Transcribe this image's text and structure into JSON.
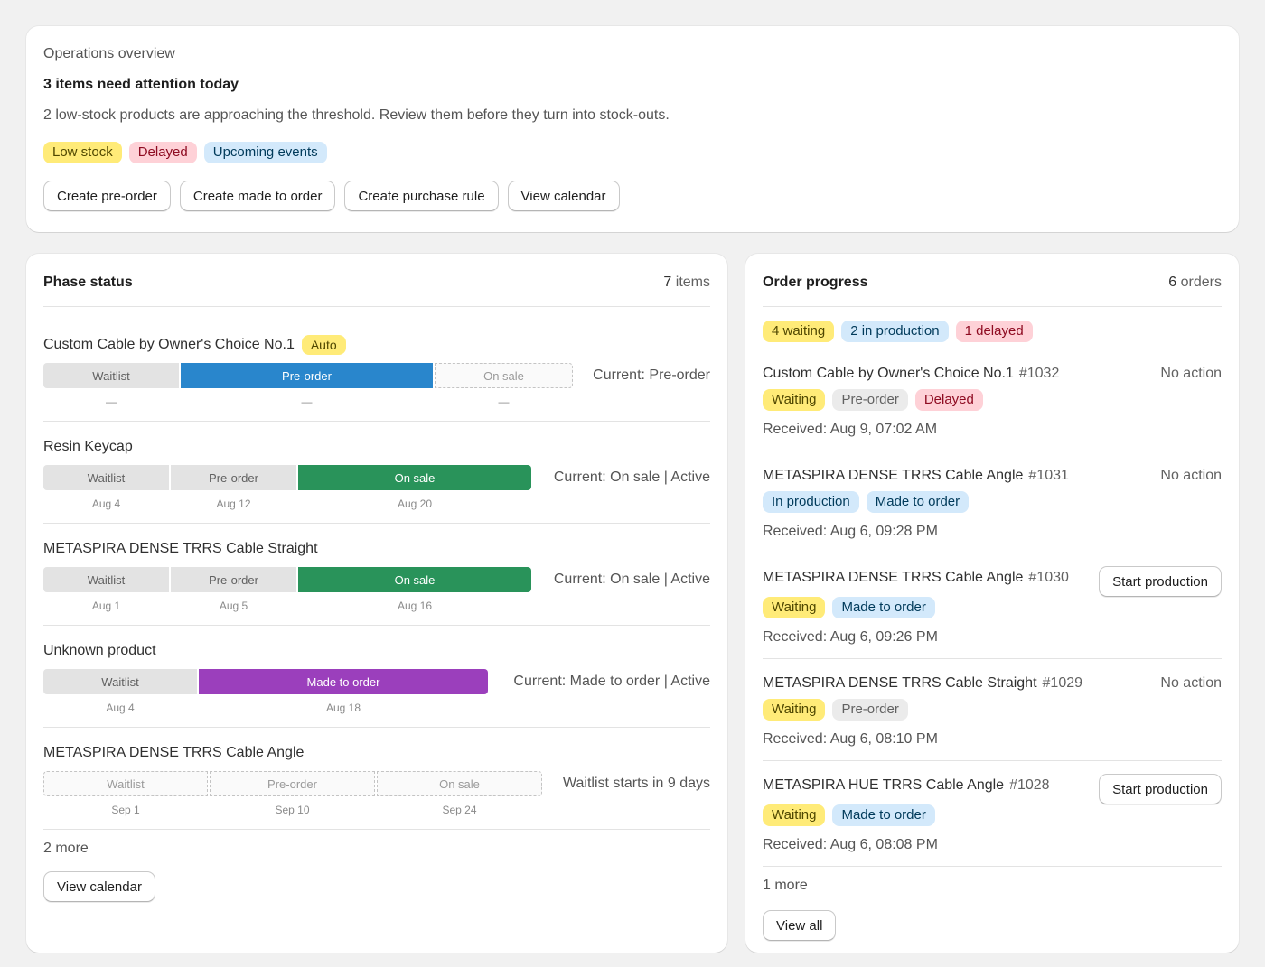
{
  "overview": {
    "eyebrow": "Operations overview",
    "title": "3 items need attention today",
    "text": "2 low-stock products are approaching the threshold. Review them before they turn into stock-outs.",
    "badges": [
      {
        "label": "Low stock",
        "tone": "yellow"
      },
      {
        "label": "Delayed",
        "tone": "red"
      },
      {
        "label": "Upcoming events",
        "tone": "blue"
      }
    ],
    "buttons": [
      "Create pre-order",
      "Create made to order",
      "Create purchase rule",
      "View calendar"
    ]
  },
  "phase": {
    "title": "Phase status",
    "count": "7",
    "count_unit": "items",
    "products": [
      {
        "name": "Custom Cable by Owner's Choice No.1",
        "tag": "Auto",
        "segments": [
          "Waitlist",
          "Pre-order",
          "On sale"
        ],
        "dates": [
          "—",
          "—",
          "—"
        ],
        "current": "Current: Pre-order"
      },
      {
        "name": "Resin Keycap",
        "segments": [
          "Waitlist",
          "Pre-order",
          "On sale"
        ],
        "dates": [
          "Aug 4",
          "Aug 12",
          "Aug 20"
        ],
        "current": "Current: On sale | Active"
      },
      {
        "name": "METASPIRA DENSE TRRS Cable Straight",
        "segments": [
          "Waitlist",
          "Pre-order",
          "On sale"
        ],
        "dates": [
          "Aug 1",
          "Aug 5",
          "Aug 16"
        ],
        "current": "Current: On sale | Active"
      },
      {
        "name": "Unknown product",
        "segments": [
          "Waitlist",
          "Made to order"
        ],
        "dates": [
          "Aug 4",
          "Aug 18"
        ],
        "current": "Current: Made to order | Active"
      },
      {
        "name": "METASPIRA DENSE TRRS Cable Angle",
        "segments": [
          "Waitlist",
          "Pre-order",
          "On sale"
        ],
        "dates": [
          "Sep 1",
          "Sep 10",
          "Sep 24"
        ],
        "current": "Waitlist starts in 9 days"
      }
    ],
    "more": "2 more",
    "button": "View calendar"
  },
  "orders": {
    "title": "Order progress",
    "count": "6",
    "count_unit": "orders",
    "summary": [
      {
        "label": "4 waiting",
        "tone": "yellow"
      },
      {
        "label": "2 in production",
        "tone": "blue"
      },
      {
        "label": "1 delayed",
        "tone": "red"
      }
    ],
    "items": [
      {
        "name": "Custom Cable by Owner's Choice No.1",
        "number": "#1032",
        "action": "No action",
        "badges": [
          {
            "label": "Waiting",
            "tone": "yellow"
          },
          {
            "label": "Pre-order",
            "tone": "gray"
          },
          {
            "label": "Delayed",
            "tone": "red"
          }
        ],
        "received": "Received: Aug 9, 07:02 AM"
      },
      {
        "name": "METASPIRA DENSE TRRS Cable Angle",
        "number": "#1031",
        "action": "No action",
        "badges": [
          {
            "label": "In production",
            "tone": "blue"
          },
          {
            "label": "Made to order",
            "tone": "blue"
          }
        ],
        "received": "Received: Aug 6, 09:28 PM"
      },
      {
        "name": "METASPIRA DENSE TRRS Cable Angle",
        "number": "#1030",
        "action_button": "Start production",
        "badges": [
          {
            "label": "Waiting",
            "tone": "yellow"
          },
          {
            "label": "Made to order",
            "tone": "blue"
          }
        ],
        "received": "Received: Aug 6, 09:26 PM"
      },
      {
        "name": "METASPIRA DENSE TRRS Cable Straight",
        "number": "#1029",
        "action": "No action",
        "badges": [
          {
            "label": "Waiting",
            "tone": "yellow"
          },
          {
            "label": "Pre-order",
            "tone": "gray"
          }
        ],
        "received": "Received: Aug 6, 08:10 PM"
      },
      {
        "name": "METASPIRA HUE TRRS Cable Angle",
        "number": "#1028",
        "action_button": "Start production",
        "badges": [
          {
            "label": "Waiting",
            "tone": "yellow"
          },
          {
            "label": "Made to order",
            "tone": "blue"
          }
        ],
        "received": "Received: Aug 6, 08:08 PM"
      }
    ],
    "more": "1 more",
    "button": "View all"
  },
  "colors": {
    "pre_order": "#2986cc",
    "on_sale": "#29935a",
    "made_to_order": "#9b3fbc",
    "badge_yellow": "#ffeb78",
    "badge_red": "#fed1d7",
    "badge_blue": "#d3e9fb"
  }
}
